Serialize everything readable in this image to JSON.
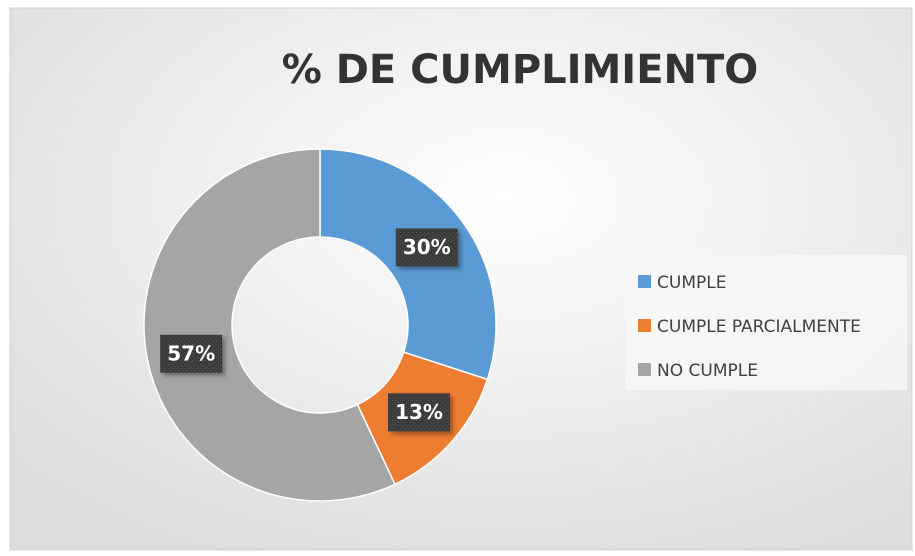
{
  "chart_data": {
    "type": "donut",
    "title": "% DE CUMPLIMIENTO",
    "categories": [
      "CUMPLE",
      "CUMPLE PARCIALMENTE",
      "NO CUMPLE"
    ],
    "values": [
      30,
      13,
      57
    ],
    "value_labels": [
      "30%",
      "13%",
      "57%"
    ],
    "colors": [
      "#5b9bd5",
      "#ed7d31",
      "#a5a5a5"
    ],
    "legend": "right"
  }
}
